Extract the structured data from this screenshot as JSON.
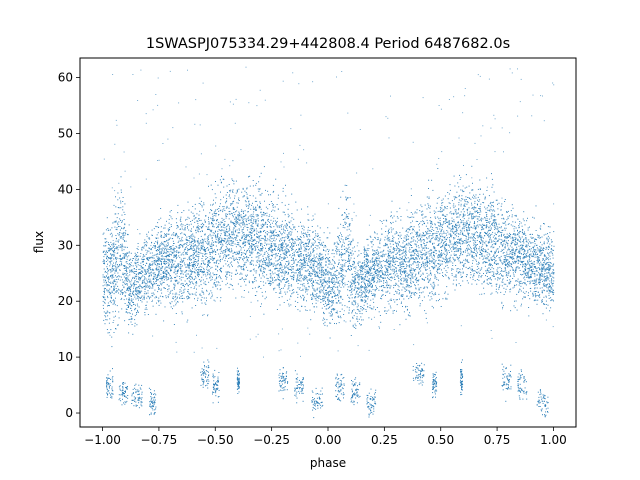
{
  "chart_data": {
    "type": "scatter",
    "title": "1SWASPJ075334.29+442808.4 Period 6487682.0s",
    "xlabel": "phase",
    "ylabel": "flux",
    "xlim": [
      -1.1,
      1.1
    ],
    "ylim": [
      -2.5,
      63.5
    ],
    "xticks": [
      -1.0,
      -0.75,
      -0.5,
      -0.25,
      0.0,
      0.25,
      0.5,
      0.75,
      1.0
    ],
    "xtick_labels": [
      "−1.00",
      "−0.75",
      "−0.50",
      "−0.25",
      "0.00",
      "0.25",
      "0.50",
      "0.75",
      "1.00"
    ],
    "yticks": [
      0,
      10,
      20,
      30,
      40,
      50,
      60
    ],
    "ytick_labels": [
      "0",
      "10",
      "20",
      "30",
      "40",
      "50",
      "60"
    ],
    "grid": false,
    "marker_color": "#1f77b4",
    "series": [
      {
        "name": "",
        "description_profile": [
          {
            "x": -1.0,
            "y": 25,
            "spread": 8
          },
          {
            "x": -0.95,
            "y": 25,
            "spread": 10
          },
          {
            "x": -0.92,
            "y": 30,
            "spread": 12
          },
          {
            "x": -0.88,
            "y": 22,
            "spread": 7
          },
          {
            "x": -0.82,
            "y": 25,
            "spread": 6
          },
          {
            "x": -0.78,
            "y": 26,
            "spread": 7
          },
          {
            "x": -0.72,
            "y": 27,
            "spread": 8
          },
          {
            "x": -0.65,
            "y": 27,
            "spread": 8
          },
          {
            "x": -0.55,
            "y": 29,
            "spread": 9
          },
          {
            "x": -0.45,
            "y": 32,
            "spread": 9
          },
          {
            "x": -0.35,
            "y": 32,
            "spread": 9
          },
          {
            "x": -0.25,
            "y": 30,
            "spread": 9
          },
          {
            "x": -0.15,
            "y": 28,
            "spread": 8
          },
          {
            "x": -0.05,
            "y": 26,
            "spread": 7
          },
          {
            "x": 0.02,
            "y": 22,
            "spread": 7
          },
          {
            "x": 0.08,
            "y": 30,
            "spread": 12
          },
          {
            "x": 0.12,
            "y": 22,
            "spread": 7
          },
          {
            "x": 0.18,
            "y": 25,
            "spread": 6
          },
          {
            "x": 0.22,
            "y": 26,
            "spread": 7
          },
          {
            "x": 0.28,
            "y": 27,
            "spread": 8
          },
          {
            "x": 0.35,
            "y": 27,
            "spread": 8
          },
          {
            "x": 0.45,
            "y": 29,
            "spread": 9
          },
          {
            "x": 0.55,
            "y": 32,
            "spread": 9
          },
          {
            "x": 0.65,
            "y": 32,
            "spread": 9
          },
          {
            "x": 0.75,
            "y": 30,
            "spread": 9
          },
          {
            "x": 0.85,
            "y": 28,
            "spread": 8
          },
          {
            "x": 0.95,
            "y": 26,
            "spread": 7
          },
          {
            "x": 1.0,
            "y": 25,
            "spread": 7
          }
        ],
        "low_clusters": [
          {
            "x": -0.97,
            "y": 5,
            "w": 0.03
          },
          {
            "x": -0.91,
            "y": 4,
            "w": 0.04
          },
          {
            "x": -0.85,
            "y": 3,
            "w": 0.05
          },
          {
            "x": -0.78,
            "y": 2,
            "w": 0.03
          },
          {
            "x": -0.55,
            "y": 7,
            "w": 0.04
          },
          {
            "x": -0.5,
            "y": 5,
            "w": 0.03
          },
          {
            "x": -0.4,
            "y": 6,
            "w": 0.01
          },
          {
            "x": -0.2,
            "y": 6,
            "w": 0.04
          },
          {
            "x": -0.13,
            "y": 5,
            "w": 0.04
          },
          {
            "x": -0.05,
            "y": 2,
            "w": 0.05
          },
          {
            "x": 0.05,
            "y": 5,
            "w": 0.04
          },
          {
            "x": 0.12,
            "y": 4,
            "w": 0.04
          },
          {
            "x": 0.19,
            "y": 2,
            "w": 0.04
          },
          {
            "x": 0.4,
            "y": 7,
            "w": 0.05
          },
          {
            "x": 0.47,
            "y": 5,
            "w": 0.02
          },
          {
            "x": 0.59,
            "y": 6,
            "w": 0.01
          },
          {
            "x": 0.79,
            "y": 6,
            "w": 0.04
          },
          {
            "x": 0.86,
            "y": 5,
            "w": 0.04
          },
          {
            "x": 0.95,
            "y": 2,
            "w": 0.05
          }
        ]
      }
    ]
  }
}
